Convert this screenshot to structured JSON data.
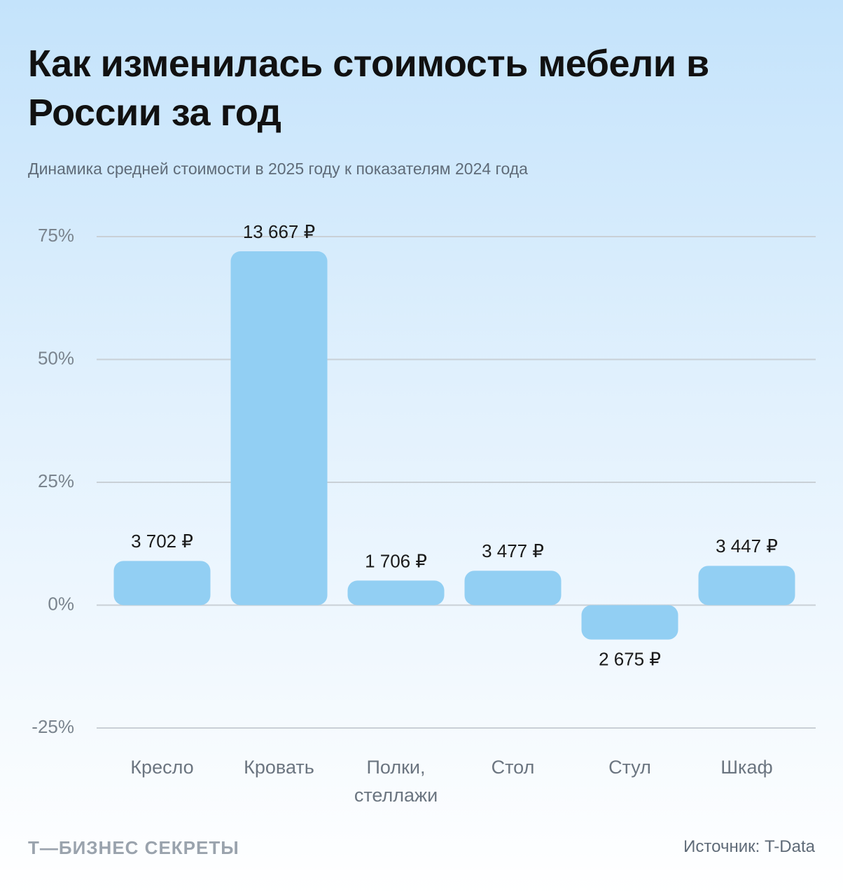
{
  "chart_data": {
    "type": "bar",
    "title": "Как изменилась стоимость мебели в России за год",
    "subtitle": "Динамика средней стоимости в 2025 году к показателям 2024 года",
    "categories": [
      "Кресло",
      "Кровать",
      "Полки, стеллажи",
      "Стол",
      "Стул",
      "Шкаф"
    ],
    "values": [
      9,
      72,
      5,
      7,
      -7,
      8
    ],
    "bar_labels": [
      "3 702 ₽",
      "13 667 ₽",
      "1 706 ₽",
      "3 477 ₽",
      "2 675 ₽",
      "3 447 ₽"
    ],
    "color": "#92cff3",
    "ylim": [
      -25,
      75
    ],
    "yticks": [
      {
        "value": -25,
        "label": "-25%"
      },
      {
        "value": 0,
        "label": "0%"
      },
      {
        "value": 25,
        "label": "25%"
      },
      {
        "value": 50,
        "label": "50%"
      },
      {
        "value": 75,
        "label": "75%"
      }
    ],
    "grid": true,
    "brand": "Т—БИЗНЕС СЕКРЕТЫ",
    "source": "Источник: T-Data"
  }
}
